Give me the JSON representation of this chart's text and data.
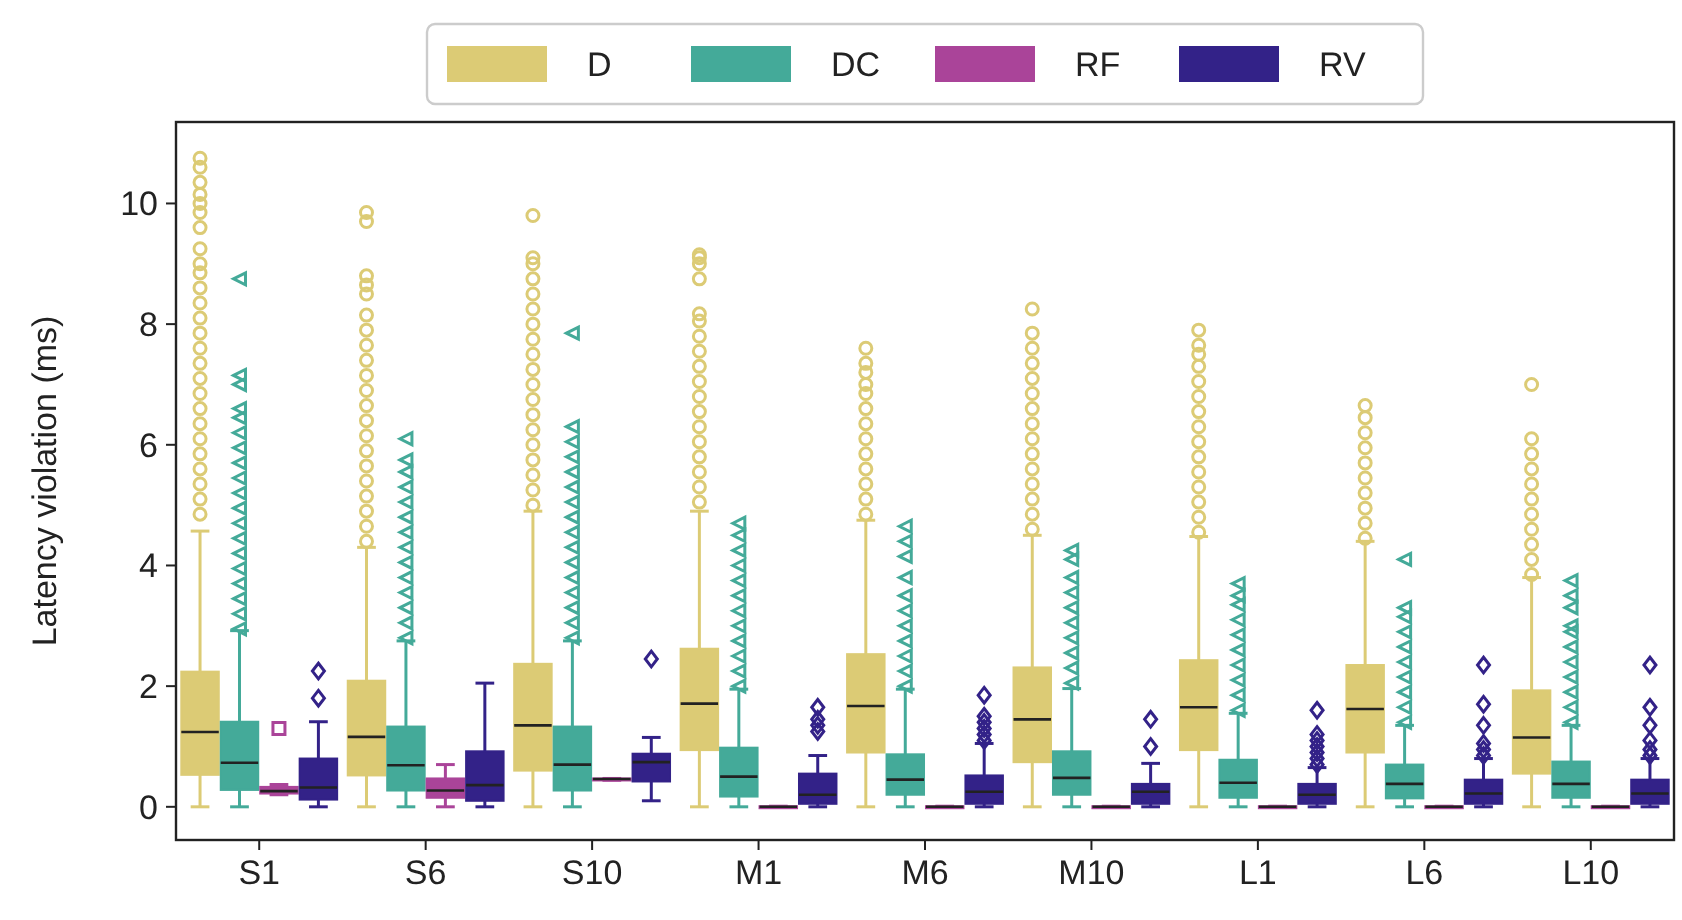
{
  "chart_data": {
    "type": "box",
    "ylabel": "Latency violation (ms)",
    "categories": [
      "S1",
      "S6",
      "S10",
      "M1",
      "M6",
      "M10",
      "L1",
      "L6",
      "L10"
    ],
    "ylim": [
      -0.55,
      11.35
    ],
    "yticks": [
      0,
      2,
      4,
      6,
      8,
      10
    ],
    "grid": false,
    "legend": "top",
    "series": [
      {
        "name": "D",
        "color": "#dccb75",
        "marker": "circle",
        "boxes": [
          {
            "low": 0,
            "q1": 0.53,
            "median": 1.24,
            "q3": 2.24,
            "high": 4.57,
            "outliers": [
              4.85,
              5.1,
              5.35,
              5.6,
              5.85,
              6.1,
              6.35,
              6.6,
              6.85,
              7.1,
              7.35,
              7.6,
              7.85,
              8.1,
              8.35,
              8.6,
              8.85,
              9.0,
              9.25,
              9.6,
              9.85,
              10.0,
              10.15,
              10.35,
              10.6,
              10.75
            ]
          },
          {
            "low": 0,
            "q1": 0.52,
            "median": 1.16,
            "q3": 2.09,
            "high": 4.3,
            "outliers": [
              4.4,
              4.65,
              4.9,
              5.15,
              5.4,
              5.65,
              5.9,
              6.15,
              6.4,
              6.65,
              6.9,
              7.15,
              7.4,
              7.65,
              7.9,
              8.15,
              8.5,
              8.65,
              8.8,
              9.7,
              9.85
            ]
          },
          {
            "low": 0,
            "q1": 0.6,
            "median": 1.35,
            "q3": 2.37,
            "high": 4.9,
            "outliers": [
              5.0,
              5.25,
              5.5,
              5.75,
              6.0,
              6.25,
              6.5,
              6.75,
              7.0,
              7.25,
              7.5,
              7.75,
              8.0,
              8.25,
              8.5,
              8.75,
              9.0,
              9.1,
              9.8
            ]
          },
          {
            "low": 0,
            "q1": 0.94,
            "median": 1.71,
            "q3": 2.62,
            "high": 4.9,
            "outliers": [
              5.05,
              5.3,
              5.55,
              5.8,
              6.05,
              6.3,
              6.55,
              6.8,
              7.05,
              7.3,
              7.55,
              7.8,
              8.05,
              8.17,
              8.75,
              9.0,
              9.1,
              9.15
            ]
          },
          {
            "low": 0,
            "q1": 0.9,
            "median": 1.67,
            "q3": 2.53,
            "high": 4.75,
            "outliers": [
              4.85,
              5.1,
              5.35,
              5.6,
              5.85,
              6.1,
              6.35,
              6.6,
              6.85,
              7.0,
              7.2,
              7.35,
              7.6
            ]
          },
          {
            "low": 0,
            "q1": 0.74,
            "median": 1.45,
            "q3": 2.31,
            "high": 4.5,
            "outliers": [
              4.6,
              4.85,
              5.1,
              5.35,
              5.6,
              5.85,
              6.1,
              6.35,
              6.6,
              6.85,
              7.1,
              7.35,
              7.6,
              7.85,
              8.25
            ]
          },
          {
            "low": 0,
            "q1": 0.94,
            "median": 1.65,
            "q3": 2.43,
            "high": 4.48,
            "outliers": [
              4.55,
              4.8,
              5.05,
              5.3,
              5.55,
              5.8,
              6.05,
              6.3,
              6.55,
              6.8,
              7.05,
              7.3,
              7.5,
              7.65,
              7.9
            ]
          },
          {
            "low": 0,
            "q1": 0.9,
            "median": 1.62,
            "q3": 2.35,
            "high": 4.4,
            "outliers": [
              4.45,
              4.7,
              4.95,
              5.2,
              5.45,
              5.7,
              5.95,
              6.2,
              6.45,
              6.65
            ]
          },
          {
            "low": 0,
            "q1": 0.55,
            "median": 1.15,
            "q3": 1.93,
            "high": 3.8,
            "outliers": [
              3.85,
              4.1,
              4.35,
              4.6,
              4.85,
              5.1,
              5.35,
              5.6,
              5.85,
              6.1,
              7.0
            ]
          }
        ]
      },
      {
        "name": "DC",
        "color": "#44aa99",
        "marker": "triangle",
        "boxes": [
          {
            "low": 0,
            "q1": 0.28,
            "median": 0.73,
            "q3": 1.41,
            "high": 2.92,
            "outliers": [
              2.95,
              3.2,
              3.45,
              3.7,
              3.95,
              4.2,
              4.45,
              4.7,
              4.95,
              5.2,
              5.45,
              5.7,
              5.95,
              6.2,
              6.45,
              6.6,
              7.0,
              7.15,
              8.75
            ]
          },
          {
            "low": 0,
            "q1": 0.27,
            "median": 0.69,
            "q3": 1.33,
            "high": 2.75,
            "outliers": [
              2.8,
              3.05,
              3.3,
              3.55,
              3.8,
              4.05,
              4.3,
              4.55,
              4.8,
              5.05,
              5.3,
              5.55,
              5.75,
              6.1
            ]
          },
          {
            "low": 0,
            "q1": 0.27,
            "median": 0.7,
            "q3": 1.33,
            "high": 2.75,
            "outliers": [
              2.8,
              3.05,
              3.3,
              3.55,
              3.8,
              4.05,
              4.3,
              4.55,
              4.8,
              5.05,
              5.3,
              5.55,
              5.8,
              6.05,
              6.3,
              7.85
            ]
          },
          {
            "low": 0,
            "q1": 0.17,
            "median": 0.5,
            "q3": 0.98,
            "high": 1.95,
            "outliers": [
              2.0,
              2.25,
              2.5,
              2.75,
              3.0,
              3.25,
              3.5,
              3.75,
              4.0,
              4.25,
              4.5,
              4.7
            ]
          },
          {
            "low": 0,
            "q1": 0.2,
            "median": 0.45,
            "q3": 0.87,
            "high": 1.95,
            "outliers": [
              2.0,
              2.25,
              2.5,
              2.75,
              3.0,
              3.25,
              3.5,
              3.8,
              4.15,
              4.4,
              4.65
            ]
          },
          {
            "low": 0,
            "q1": 0.2,
            "median": 0.48,
            "q3": 0.92,
            "high": 1.96,
            "outliers": [
              2.05,
              2.3,
              2.55,
              2.8,
              3.05,
              3.3,
              3.55,
              3.8,
              4.1,
              4.25
            ]
          },
          {
            "low": 0,
            "q1": 0.15,
            "median": 0.4,
            "q3": 0.78,
            "high": 1.55,
            "outliers": [
              1.6,
              1.85,
              2.1,
              2.35,
              2.6,
              2.85,
              3.1,
              3.35,
              3.5,
              3.7
            ]
          },
          {
            "low": 0,
            "q1": 0.14,
            "median": 0.38,
            "q3": 0.7,
            "high": 1.35,
            "outliers": [
              1.4,
              1.65,
              1.9,
              2.15,
              2.4,
              2.65,
              2.9,
              3.15,
              3.3,
              4.1
            ]
          },
          {
            "low": 0,
            "q1": 0.15,
            "median": 0.38,
            "q3": 0.75,
            "high": 1.35,
            "outliers": [
              1.4,
              1.65,
              1.9,
              2.15,
              2.4,
              2.65,
              2.9,
              3.0,
              3.3,
              3.5,
              3.75
            ]
          }
        ]
      },
      {
        "name": "RF",
        "color": "#aa4499",
        "marker": "square",
        "boxes": [
          {
            "low": 0.2,
            "q1": 0.22,
            "median": 0.26,
            "q3": 0.33,
            "high": 0.37,
            "outliers": [
              1.3
            ]
          },
          {
            "low": 0,
            "q1": 0.15,
            "median": 0.27,
            "q3": 0.47,
            "high": 0.7
          },
          {
            "low": 0.44,
            "q1": 0.44,
            "median": 0.46,
            "q3": 0.47,
            "high": 0.47
          },
          {
            "low": 0,
            "q1": 0,
            "median": 0,
            "q3": 0.01,
            "high": 0.01
          },
          {
            "low": 0,
            "q1": 0,
            "median": 0,
            "q3": 0.01,
            "high": 0.01
          },
          {
            "low": 0,
            "q1": 0,
            "median": 0,
            "q3": 0.01,
            "high": 0.01
          },
          {
            "low": 0,
            "q1": 0,
            "median": 0,
            "q3": 0.01,
            "high": 0.01
          },
          {
            "low": 0,
            "q1": 0,
            "median": 0,
            "q3": 0.01,
            "high": 0.01
          },
          {
            "low": 0,
            "q1": 0,
            "median": 0,
            "q3": 0.01,
            "high": 0.01
          }
        ]
      },
      {
        "name": "RV",
        "color": "#332288",
        "marker": "diamond",
        "boxes": [
          {
            "low": 0,
            "q1": 0.12,
            "median": 0.32,
            "q3": 0.8,
            "high": 1.41,
            "outliers": [
              1.8,
              2.25
            ]
          },
          {
            "low": 0,
            "q1": 0.1,
            "median": 0.36,
            "q3": 0.92,
            "high": 2.05
          },
          {
            "low": 0.1,
            "q1": 0.42,
            "median": 0.74,
            "q3": 0.88,
            "high": 1.15,
            "outliers": [
              2.45
            ]
          },
          {
            "low": 0,
            "q1": 0.05,
            "median": 0.2,
            "q3": 0.55,
            "high": 0.85,
            "outliers": [
              1.25,
              1.35,
              1.45,
              1.65
            ]
          },
          {
            "low": 0,
            "q1": 0.05,
            "median": 0.25,
            "q3": 0.52,
            "high": 1.05,
            "outliers": [
              1.1,
              1.2,
              1.3,
              1.4,
              1.5,
              1.85
            ]
          },
          {
            "low": 0,
            "q1": 0.05,
            "median": 0.25,
            "q3": 0.38,
            "high": 0.72,
            "outliers": [
              1.0,
              1.45
            ]
          },
          {
            "low": 0,
            "q1": 0.05,
            "median": 0.2,
            "q3": 0.38,
            "high": 0.65,
            "outliers": [
              0.7,
              0.8,
              0.9,
              1.0,
              1.1,
              1.2,
              1.6
            ]
          },
          {
            "low": 0,
            "q1": 0.05,
            "median": 0.22,
            "q3": 0.45,
            "high": 0.8,
            "outliers": [
              0.85,
              0.95,
              1.05,
              1.35,
              1.7,
              2.35
            ]
          },
          {
            "low": 0,
            "q1": 0.05,
            "median": 0.22,
            "q3": 0.45,
            "high": 0.8,
            "outliers": [
              0.85,
              0.95,
              1.1,
              1.35,
              1.65,
              2.35
            ]
          }
        ]
      }
    ]
  }
}
